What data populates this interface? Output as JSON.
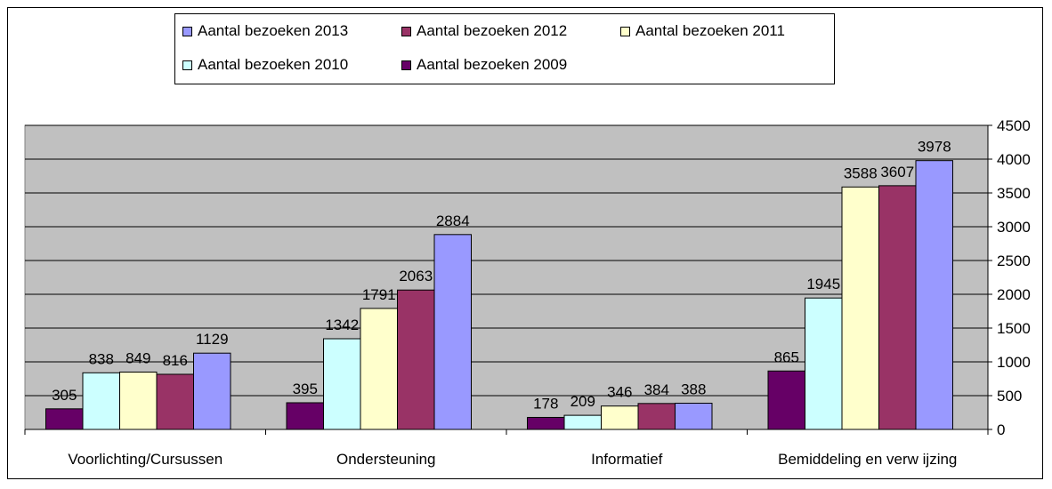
{
  "chart_data": {
    "type": "bar",
    "title": "",
    "xlabel": "",
    "ylabel": "",
    "ylim": [
      0,
      4500
    ],
    "yticks": [
      0,
      500,
      1000,
      1500,
      2000,
      2500,
      3000,
      3500,
      4000,
      4500
    ],
    "y_axis_side": "right",
    "grid": true,
    "legend_position": "top",
    "categories": [
      "Voorlichting/Cursussen",
      "Ondersteuning",
      "Informatief",
      "Bemiddeling en verw ijzing"
    ],
    "series": [
      {
        "name": "Aantal bezoeken 2009",
        "color": "#660066",
        "values": [
          305,
          395,
          178,
          865
        ]
      },
      {
        "name": "Aantal bezoeken 2010",
        "color": "#ccffff",
        "values": [
          838,
          1342,
          209,
          1945
        ]
      },
      {
        "name": "Aantal bezoeken 2011",
        "color": "#ffffcc",
        "values": [
          849,
          1791,
          346,
          3588
        ]
      },
      {
        "name": "Aantal bezoeken 2012",
        "color": "#993366",
        "values": [
          816,
          2063,
          384,
          3607
        ]
      },
      {
        "name": "Aantal bezoeken 2013",
        "color": "#9999ff",
        "values": [
          1129,
          2884,
          388,
          3978
        ]
      }
    ],
    "plot_background": "#c0c0c0"
  }
}
